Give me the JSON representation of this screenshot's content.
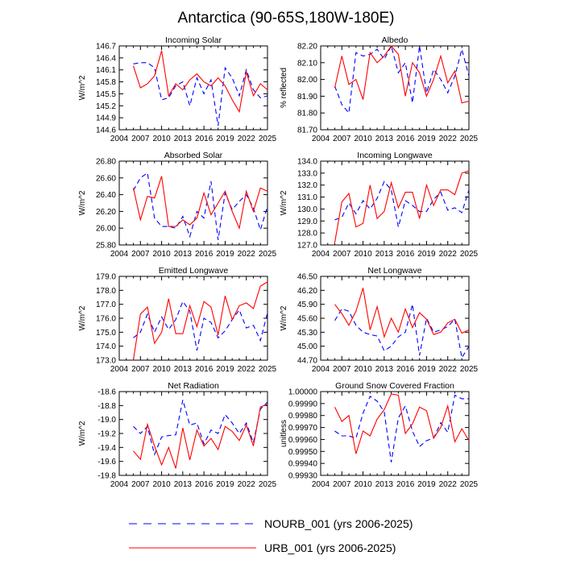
{
  "figure": {
    "title": "Antarctica (90-65S,180W-180E)"
  },
  "legend": {
    "items": [
      {
        "label": "NOURB_001 (yrs 2006-2025)",
        "color": "#0000ff",
        "dash": "dashed"
      },
      {
        "label": "URB_001 (yrs 2006-2025)",
        "color": "#ff0000",
        "dash": "solid"
      }
    ]
  },
  "chart_data": [
    {
      "type": "line",
      "title": "Incoming Solar",
      "ylabel": "W/m^2",
      "xlim": [
        2004,
        2025
      ],
      "xticks": [
        2004,
        2007,
        2010,
        2013,
        2016,
        2019,
        2022,
        2025
      ],
      "ylim": [
        144.6,
        146.7
      ],
      "yticks": [
        "146.7",
        "146.4",
        "146.1",
        "145.8",
        "145.5",
        "145.2",
        "144.9",
        "144.6"
      ],
      "x": [
        2006,
        2007,
        2008,
        2009,
        2010,
        2011,
        2012,
        2013,
        2014,
        2015,
        2016,
        2017,
        2018,
        2019,
        2020,
        2021,
        2022,
        2023,
        2024,
        2025
      ],
      "series": [
        {
          "name": "NOURB_001",
          "values": [
            146.25,
            146.28,
            146.28,
            146.15,
            145.35,
            145.4,
            145.7,
            145.8,
            145.2,
            145.9,
            145.5,
            145.85,
            144.7,
            146.15,
            145.9,
            145.45,
            146.1,
            145.6,
            145.4,
            145.45
          ]
        },
        {
          "name": "URB_001",
          "values": [
            146.2,
            145.65,
            145.75,
            145.95,
            146.58,
            145.45,
            145.75,
            145.6,
            145.85,
            146.0,
            145.8,
            145.7,
            145.9,
            145.7,
            145.35,
            145.05,
            146.05,
            145.45,
            145.75,
            145.6
          ]
        }
      ]
    },
    {
      "type": "line",
      "title": "Albedo",
      "ylabel": "% reflected",
      "xlim": [
        2004,
        2025
      ],
      "xticks": [
        2004,
        2007,
        2010,
        2013,
        2016,
        2019,
        2022,
        2025
      ],
      "ylim": [
        81.7,
        82.2
      ],
      "yticks": [
        "82.20",
        "82.10",
        "82.00",
        "81.90",
        "81.80",
        "81.70"
      ],
      "x": [
        2006,
        2007,
        2008,
        2009,
        2010,
        2011,
        2012,
        2013,
        2014,
        2015,
        2016,
        2017,
        2018,
        2019,
        2020,
        2021,
        2022,
        2023,
        2024,
        2025
      ],
      "series": [
        {
          "name": "NOURB_001",
          "values": [
            81.96,
            81.85,
            81.8,
            82.16,
            82.14,
            82.15,
            82.18,
            82.12,
            82.2,
            82.04,
            82.1,
            81.86,
            82.2,
            81.92,
            82.06,
            82.0,
            81.92,
            82.02,
            82.18,
            82.02
          ]
        },
        {
          "name": "URB_001",
          "values": [
            81.95,
            82.14,
            81.97,
            82.0,
            81.88,
            82.16,
            82.1,
            82.14,
            82.2,
            82.15,
            81.9,
            82.1,
            82.04,
            81.9,
            82.0,
            82.14,
            81.98,
            82.05,
            81.86,
            81.87
          ]
        }
      ]
    },
    {
      "type": "line",
      "title": "Absorbed Solar",
      "ylabel": "W/m^2",
      "xlim": [
        2004,
        2025
      ],
      "xticks": [
        2004,
        2007,
        2010,
        2013,
        2016,
        2019,
        2022,
        2025
      ],
      "ylim": [
        25.8,
        26.8
      ],
      "yticks": [
        "26.80",
        "26.60",
        "26.40",
        "26.20",
        "26.00",
        "25.80"
      ],
      "x": [
        2006,
        2007,
        2008,
        2009,
        2010,
        2011,
        2012,
        2013,
        2014,
        2015,
        2016,
        2017,
        2018,
        2019,
        2020,
        2021,
        2022,
        2023,
        2024,
        2025
      ],
      "series": [
        {
          "name": "NOURB_001",
          "values": [
            26.45,
            26.6,
            26.66,
            26.12,
            26.02,
            26.02,
            26.0,
            26.14,
            25.9,
            26.2,
            26.12,
            26.56,
            25.86,
            26.42,
            26.22,
            26.32,
            26.4,
            26.24,
            25.98,
            26.26
          ]
        },
        {
          "name": "URB_001",
          "values": [
            26.48,
            26.1,
            26.38,
            26.36,
            26.62,
            26.02,
            26.02,
            26.1,
            26.04,
            26.12,
            26.42,
            26.16,
            26.3,
            26.44,
            26.2,
            26.0,
            26.44,
            26.2,
            26.48,
            26.44
          ]
        }
      ]
    },
    {
      "type": "line",
      "title": "Incoming Longwave",
      "ylabel": "W/m^2",
      "xlim": [
        2004,
        2025
      ],
      "xticks": [
        2004,
        2007,
        2010,
        2013,
        2016,
        2019,
        2022,
        2025
      ],
      "ylim": [
        127.0,
        134.0
      ],
      "yticks": [
        "134.0",
        "133.0",
        "132.0",
        "131.0",
        "130.0",
        "129.0",
        "128.0",
        "127.0"
      ],
      "x": [
        2006,
        2007,
        2008,
        2009,
        2010,
        2011,
        2012,
        2013,
        2014,
        2015,
        2016,
        2017,
        2018,
        2019,
        2020,
        2021,
        2022,
        2023,
        2024,
        2025
      ],
      "series": [
        {
          "name": "NOURB_001",
          "values": [
            129.1,
            129.3,
            130.5,
            129.6,
            130.7,
            130.0,
            130.9,
            132.3,
            131.6,
            128.5,
            130.7,
            130.3,
            129.8,
            129.8,
            130.8,
            131.4,
            129.9,
            130.1,
            129.7,
            131.6
          ]
        },
        {
          "name": "URB_001",
          "values": [
            127.2,
            130.6,
            131.3,
            128.5,
            128.8,
            132.0,
            129.2,
            129.8,
            132.2,
            130.1,
            131.4,
            131.4,
            129.2,
            132.0,
            130.3,
            131.6,
            131.6,
            131.2,
            133.0,
            133.2
          ]
        }
      ]
    },
    {
      "type": "line",
      "title": "Emitted Longwave",
      "ylabel": "W/m^2",
      "xlim": [
        2004,
        2025
      ],
      "xticks": [
        2004,
        2007,
        2010,
        2013,
        2016,
        2019,
        2022,
        2025
      ],
      "ylim": [
        173.0,
        179.0
      ],
      "yticks": [
        "179.0",
        "178.0",
        "177.0",
        "176.0",
        "175.0",
        "174.0",
        "173.0"
      ],
      "x": [
        2006,
        2007,
        2008,
        2009,
        2010,
        2011,
        2012,
        2013,
        2014,
        2015,
        2016,
        2017,
        2018,
        2019,
        2020,
        2021,
        2022,
        2023,
        2024,
        2025
      ],
      "series": [
        {
          "name": "NOURB_001",
          "values": [
            174.6,
            175.0,
            176.3,
            175.0,
            176.1,
            175.2,
            175.9,
            177.2,
            176.5,
            173.7,
            176.0,
            175.7,
            174.6,
            175.1,
            175.9,
            176.6,
            175.3,
            175.5,
            174.4,
            176.4
          ]
        },
        {
          "name": "URB_001",
          "values": [
            173.0,
            176.3,
            176.8,
            174.2,
            175.0,
            177.4,
            174.9,
            174.9,
            176.9,
            175.4,
            177.2,
            176.8,
            174.8,
            177.6,
            175.9,
            176.9,
            177.1,
            176.7,
            178.3,
            178.6
          ]
        }
      ]
    },
    {
      "type": "line",
      "title": "Net Longwave",
      "ylabel": "W/m^2",
      "xlim": [
        2004,
        2025
      ],
      "xticks": [
        2004,
        2007,
        2010,
        2013,
        2016,
        2019,
        2022,
        2025
      ],
      "ylim": [
        44.7,
        46.5
      ],
      "yticks": [
        "46.50",
        "46.20",
        "45.90",
        "45.60",
        "45.30",
        "45.00",
        "44.70"
      ],
      "x": [
        2006,
        2007,
        2008,
        2009,
        2010,
        2011,
        2012,
        2013,
        2014,
        2015,
        2016,
        2017,
        2018,
        2019,
        2020,
        2021,
        2022,
        2023,
        2024,
        2025
      ],
      "series": [
        {
          "name": "NOURB_001",
          "values": [
            45.55,
            45.8,
            45.75,
            45.45,
            45.3,
            45.25,
            45.22,
            44.9,
            45.0,
            45.2,
            45.3,
            45.9,
            44.8,
            45.6,
            45.3,
            45.35,
            45.42,
            45.58,
            44.75,
            45.0
          ]
        },
        {
          "name": "URB_001",
          "values": [
            45.9,
            45.7,
            45.45,
            45.75,
            46.25,
            45.35,
            45.85,
            45.2,
            45.6,
            45.3,
            45.8,
            45.4,
            45.72,
            45.58,
            45.25,
            45.3,
            45.5,
            45.58,
            45.28,
            45.35
          ]
        }
      ]
    },
    {
      "type": "line",
      "title": "Net Radiation",
      "ylabel": "W/m^2",
      "xlim": [
        2004,
        2025
      ],
      "xticks": [
        2004,
        2007,
        2010,
        2013,
        2016,
        2019,
        2022,
        2025
      ],
      "ylim": [
        -19.8,
        -18.6
      ],
      "yticks": [
        "-18.6",
        "-18.8",
        "-19.0",
        "-19.2",
        "-19.4",
        "-19.6",
        "-19.8"
      ],
      "x": [
        2006,
        2007,
        2008,
        2009,
        2010,
        2011,
        2012,
        2013,
        2014,
        2015,
        2016,
        2017,
        2018,
        2019,
        2020,
        2021,
        2022,
        2023,
        2024,
        2025
      ],
      "series": [
        {
          "name": "NOURB_001",
          "values": [
            -19.1,
            -19.2,
            -19.1,
            -19.5,
            -19.25,
            -19.23,
            -19.22,
            -18.72,
            -19.08,
            -19.05,
            -19.35,
            -19.15,
            -19.2,
            -18.93,
            -19.05,
            -19.2,
            -19.05,
            -19.33,
            -18.85,
            -18.75
          ]
        },
        {
          "name": "URB_001",
          "values": [
            -19.45,
            -19.57,
            -19.07,
            -19.38,
            -19.65,
            -19.4,
            -19.7,
            -19.12,
            -19.58,
            -19.15,
            -19.38,
            -19.27,
            -19.43,
            -19.1,
            -19.17,
            -19.3,
            -19.08,
            -19.38,
            -18.82,
            -18.78
          ]
        }
      ]
    },
    {
      "type": "line",
      "title": "Ground Snow Covered Fraction",
      "ylabel": "unitless",
      "xlim": [
        2004,
        2025
      ],
      "xticks": [
        2004,
        2007,
        2010,
        2013,
        2016,
        2019,
        2022,
        2025
      ],
      "ylim": [
        0.9993,
        1.0
      ],
      "yticks": [
        "1.00000",
        "0.99990",
        "0.99980",
        "0.99970",
        "0.99960",
        "0.99950",
        "0.99940",
        "0.99930"
      ],
      "x": [
        2006,
        2007,
        2008,
        2009,
        2010,
        2011,
        2012,
        2013,
        2014,
        2015,
        2016,
        2017,
        2018,
        2019,
        2020,
        2021,
        2022,
        2023,
        2024,
        2025
      ],
      "series": [
        {
          "name": "NOURB_001",
          "values": [
            0.99967,
            0.99963,
            0.99963,
            0.99961,
            0.99982,
            0.99996,
            0.99992,
            0.99983,
            0.99941,
            0.99978,
            0.99988,
            0.99967,
            0.99954,
            0.99959,
            0.99961,
            0.99974,
            0.99966,
            0.99997,
            0.99994,
            0.99994
          ]
        },
        {
          "name": "URB_001",
          "values": [
            0.99987,
            0.99975,
            0.9998,
            0.99948,
            0.99967,
            0.99963,
            0.99977,
            0.99985,
            0.99998,
            0.99997,
            0.99965,
            0.99973,
            0.99987,
            0.99984,
            0.99961,
            0.9997,
            0.99988,
            0.99958,
            0.99969,
            0.99959
          ]
        }
      ]
    }
  ]
}
